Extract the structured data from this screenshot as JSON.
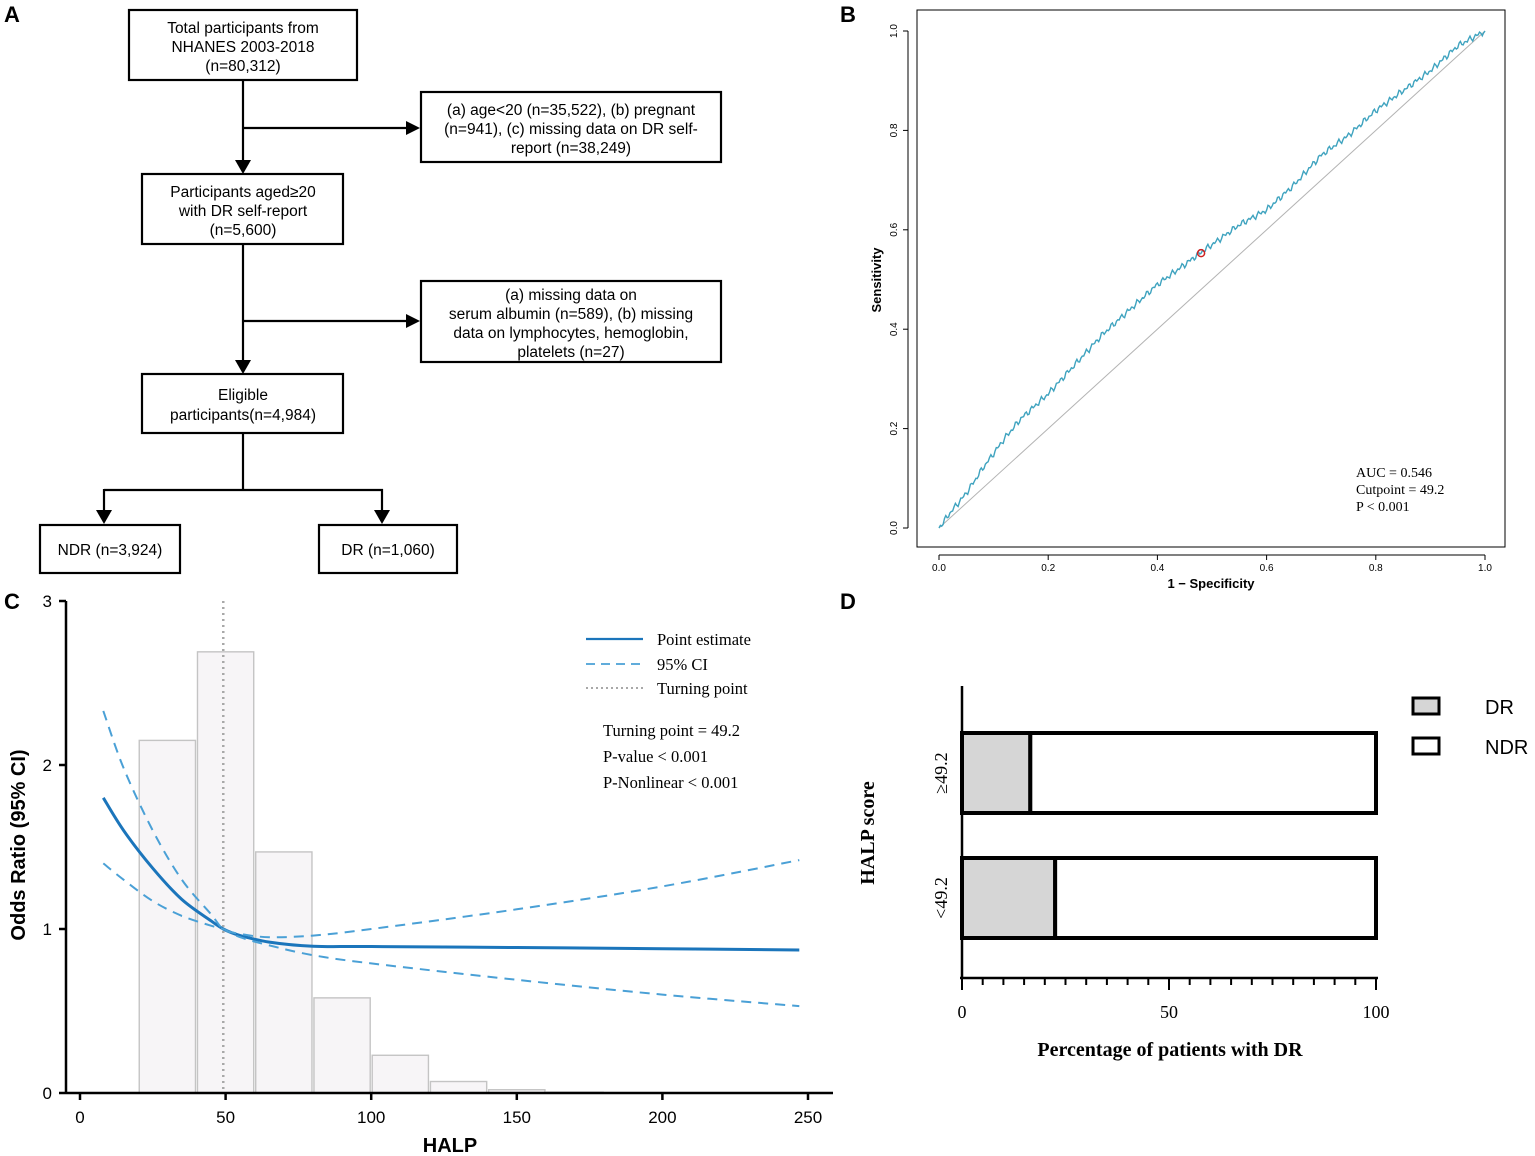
{
  "figure": {
    "panels": [
      "A",
      "B",
      "C",
      "D"
    ]
  },
  "flowchart": {
    "boxes": [
      {
        "id": "total",
        "lines": [
          "Total participants from",
          "NHANES 2003-2018",
          "(n=80,312)"
        ]
      },
      {
        "id": "excl1",
        "lines": [
          "(a) age<20 (n=35,522), (b) pregnant",
          "(n=941), (c) missing data on DR self-",
          "report (n=38,249)"
        ]
      },
      {
        "id": "aged20",
        "lines": [
          "Participants aged≥20",
          "with DR self-report",
          "(n=5,600)"
        ]
      },
      {
        "id": "excl2",
        "lines": [
          "(a) missing data on",
          "serum albumin (n=589), (b) missing",
          "data on lymphocytes, hemoglobin,",
          "platelets (n=27)"
        ]
      },
      {
        "id": "eligible",
        "lines": [
          "Eligible",
          "participants(n=4,984)"
        ]
      },
      {
        "id": "ndr",
        "lines": [
          "NDR (n=3,924)"
        ]
      },
      {
        "id": "dr",
        "lines": [
          "DR (n=1,060)"
        ]
      }
    ]
  },
  "chart_data": [
    {
      "panel": "B",
      "type": "line",
      "title": "",
      "xlabel": "1 − Specificity",
      "ylabel": "Sensitivity",
      "xlim": [
        0,
        1
      ],
      "ylim": [
        0,
        1
      ],
      "xticks": [
        "0.0",
        "0.2",
        "0.4",
        "0.6",
        "0.8",
        "1.0"
      ],
      "yticks": [
        "0.0",
        "0.2",
        "0.4",
        "0.6",
        "0.8",
        "1.0"
      ],
      "roc_curve": [
        [
          0,
          0
        ],
        [
          0.02,
          0.03
        ],
        [
          0.05,
          0.07
        ],
        [
          0.08,
          0.12
        ],
        [
          0.1,
          0.15
        ],
        [
          0.12,
          0.18
        ],
        [
          0.15,
          0.22
        ],
        [
          0.2,
          0.27
        ],
        [
          0.25,
          0.33
        ],
        [
          0.3,
          0.39
        ],
        [
          0.35,
          0.44
        ],
        [
          0.4,
          0.49
        ],
        [
          0.45,
          0.53
        ],
        [
          0.48,
          0.555
        ],
        [
          0.5,
          0.57
        ],
        [
          0.55,
          0.61
        ],
        [
          0.6,
          0.64
        ],
        [
          0.65,
          0.69
        ],
        [
          0.7,
          0.75
        ],
        [
          0.75,
          0.79
        ],
        [
          0.8,
          0.84
        ],
        [
          0.85,
          0.88
        ],
        [
          0.9,
          0.92
        ],
        [
          0.95,
          0.97
        ],
        [
          1.0,
          1.0
        ]
      ],
      "reference_line": [
        [
          0,
          0
        ],
        [
          1,
          1
        ]
      ],
      "cutpoint_marker": [
        0.48,
        0.553
      ],
      "colors": {
        "curve": "#3fa3bf",
        "reference": "#b3b3b3",
        "marker": "#cc2222"
      },
      "annotations": [
        "AUC = 0.546",
        "Cutpoint = 49.2",
        "P < 0.001"
      ]
    },
    {
      "panel": "C",
      "type": "line",
      "title": "",
      "xlabel": "HALP",
      "ylabel": "Odds Ratio (95% CI)",
      "xlim": [
        0,
        250
      ],
      "ylim": [
        0,
        3
      ],
      "xticks": [
        "0",
        "50",
        "100",
        "150",
        "200",
        "250"
      ],
      "yticks": [
        "0",
        "1",
        "2",
        "3"
      ],
      "histogram": {
        "bin_edges": [
          20,
          40,
          60,
          80,
          100,
          120,
          140,
          160,
          180,
          200
        ],
        "heights": [
          2.15,
          2.69,
          1.47,
          0.58,
          0.23,
          0.07,
          0.02,
          0.005,
          0.002
        ],
        "fill": "#f7f5f7",
        "stroke": "#c4c4c4"
      },
      "x": [
        8,
        15,
        25,
        35,
        45,
        49.2,
        55,
        65,
        80,
        100,
        150,
        200,
        247
      ],
      "series": [
        {
          "name": "Point estimate",
          "values": [
            1.8,
            1.6,
            1.37,
            1.18,
            1.05,
            1.0,
            0.96,
            0.92,
            0.895,
            0.893,
            0.887,
            0.88,
            0.872
          ],
          "style": "solid"
        },
        {
          "name": "95% CI upper",
          "values": [
            2.33,
            1.98,
            1.6,
            1.3,
            1.09,
            1.0,
            0.97,
            0.95,
            0.96,
            1.0,
            1.12,
            1.26,
            1.42
          ],
          "style": "dashed"
        },
        {
          "name": "95% CI lower",
          "values": [
            1.4,
            1.3,
            1.17,
            1.08,
            1.02,
            1.0,
            0.95,
            0.9,
            0.84,
            0.79,
            0.69,
            0.6,
            0.53
          ],
          "style": "dashed"
        }
      ],
      "turning_point_x": 49.2,
      "legend": [
        "Point estimate",
        "95% CI",
        "Turning point"
      ],
      "annotations": [
        "Turning point = 49.2",
        "P-value < 0.001",
        "P-Nonlinear < 0.001"
      ],
      "colors": {
        "line": "#1b75bb",
        "ci": "#4aa0d6",
        "turning": "#a8a8a8"
      }
    },
    {
      "panel": "D",
      "type": "bar",
      "orientation": "horizontal",
      "stacked": true,
      "title": "",
      "xlabel": "Percentage of patients with DR",
      "ylabel": "HALP score",
      "xlim": [
        0,
        100
      ],
      "xticks": [
        "0",
        "50",
        "100"
      ],
      "categories": [
        "≥49.2",
        "<49.2"
      ],
      "series": [
        {
          "name": "DR",
          "values": [
            16.5,
            22.5
          ],
          "color": "#d6d6d6"
        },
        {
          "name": "NDR",
          "values": [
            83.5,
            77.5
          ],
          "color": "#ffffff"
        }
      ],
      "legend": [
        "DR",
        "NDR"
      ]
    }
  ]
}
